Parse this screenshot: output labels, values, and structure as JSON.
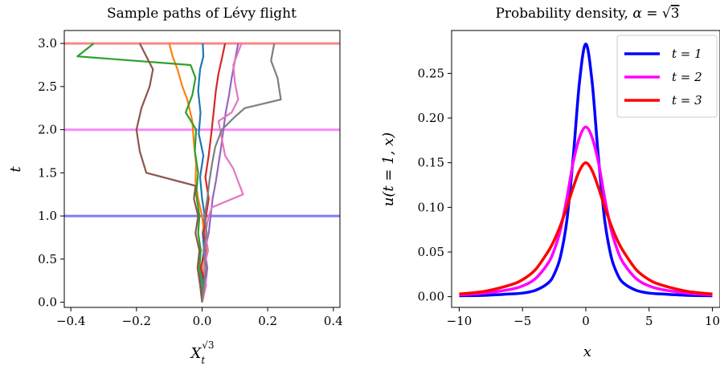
{
  "chart_data": [
    {
      "type": "line",
      "title": "Sample paths of Lévy flight",
      "xlabel": "X_t^{√3}",
      "xlabel_base": "X",
      "xlabel_sub": "t",
      "xlabel_sup": "√3",
      "ylabel": "t",
      "xlim": [
        -0.42,
        0.42
      ],
      "ylim": [
        -0.06,
        3.15
      ],
      "xticks": [
        -0.4,
        -0.2,
        0.0,
        0.2,
        0.4
      ],
      "xtick_labels": [
        "−0.4",
        "−0.2",
        "0.0",
        "0.2",
        "0.4"
      ],
      "yticks": [
        0.0,
        0.5,
        1.0,
        1.5,
        2.0,
        2.5,
        3.0
      ],
      "ytick_labels": [
        "0.0",
        "0.5",
        "1.0",
        "1.5",
        "2.0",
        "2.5",
        "3.0"
      ],
      "hlines": [
        {
          "y": 1.0,
          "color": "#7d7df5"
        },
        {
          "y": 2.0,
          "color": "#f98bf9"
        },
        {
          "y": 3.0,
          "color": "#f88888"
        }
      ],
      "series": [
        {
          "color": "#1f77b4",
          "points": [
            [
              0.0,
              0.0
            ],
            [
              0.004,
              0.2
            ],
            [
              -0.003,
              0.4
            ],
            [
              0.006,
              0.6
            ],
            [
              0.002,
              0.8
            ],
            [
              0.008,
              1.0
            ],
            [
              0.0,
              1.2
            ],
            [
              -0.006,
              1.45
            ],
            [
              0.004,
              1.7
            ],
            [
              -0.01,
              1.95
            ],
            [
              -0.005,
              2.2
            ],
            [
              -0.012,
              2.45
            ],
            [
              -0.006,
              2.7
            ],
            [
              0.004,
              2.85
            ],
            [
              0.002,
              3.0
            ]
          ]
        },
        {
          "color": "#ff7f0e",
          "points": [
            [
              0.0,
              0.0
            ],
            [
              0.008,
              0.2
            ],
            [
              0.004,
              0.4
            ],
            [
              0.014,
              0.6
            ],
            [
              0.006,
              0.8
            ],
            [
              0.0,
              1.0
            ],
            [
              -0.012,
              1.2
            ],
            [
              -0.02,
              1.4
            ],
            [
              -0.018,
              1.6
            ],
            [
              -0.025,
              1.85
            ],
            [
              -0.03,
              2.1
            ],
            [
              -0.045,
              2.35
            ],
            [
              -0.06,
              2.5
            ],
            [
              -0.075,
              2.7
            ],
            [
              -0.09,
              2.85
            ],
            [
              -0.1,
              3.0
            ]
          ]
        },
        {
          "color": "#2ca02c",
          "points": [
            [
              0.0,
              0.0
            ],
            [
              -0.002,
              0.2
            ],
            [
              -0.008,
              0.4
            ],
            [
              -0.004,
              0.6
            ],
            [
              -0.012,
              0.8
            ],
            [
              -0.008,
              1.0
            ],
            [
              -0.018,
              1.25
            ],
            [
              -0.012,
              1.5
            ],
            [
              -0.022,
              1.75
            ],
            [
              -0.018,
              2.0
            ],
            [
              -0.05,
              2.2
            ],
            [
              -0.03,
              2.4
            ],
            [
              -0.02,
              2.6
            ],
            [
              -0.035,
              2.75
            ],
            [
              -0.38,
              2.85
            ],
            [
              -0.33,
              3.0
            ]
          ]
        },
        {
          "color": "#d62728",
          "points": [
            [
              0.0,
              0.0
            ],
            [
              0.012,
              0.2
            ],
            [
              -0.004,
              0.4
            ],
            [
              0.01,
              0.6
            ],
            [
              0.005,
              0.8
            ],
            [
              0.012,
              1.0
            ],
            [
              0.02,
              1.2
            ],
            [
              0.01,
              1.45
            ],
            [
              0.02,
              1.7
            ],
            [
              0.028,
              1.95
            ],
            [
              0.035,
              2.2
            ],
            [
              0.042,
              2.45
            ],
            [
              0.05,
              2.65
            ],
            [
              0.06,
              2.82
            ],
            [
              0.07,
              3.0
            ]
          ]
        },
        {
          "color": "#9467bd",
          "points": [
            [
              0.0,
              0.0
            ],
            [
              0.01,
              0.2
            ],
            [
              0.016,
              0.4
            ],
            [
              0.008,
              0.6
            ],
            [
              0.02,
              0.8
            ],
            [
              0.026,
              1.0
            ],
            [
              0.032,
              1.2
            ],
            [
              0.042,
              1.4
            ],
            [
              0.05,
              1.6
            ],
            [
              0.058,
              1.8
            ],
            [
              0.065,
              2.0
            ],
            [
              0.072,
              2.2
            ],
            [
              0.082,
              2.4
            ],
            [
              0.09,
              2.6
            ],
            [
              0.1,
              2.8
            ],
            [
              0.11,
              3.0
            ]
          ]
        },
        {
          "color": "#8c564b",
          "points": [
            [
              0.0,
              0.0
            ],
            [
              -0.006,
              0.2
            ],
            [
              -0.014,
              0.4
            ],
            [
              -0.008,
              0.6
            ],
            [
              -0.02,
              0.8
            ],
            [
              -0.012,
              1.0
            ],
            [
              -0.025,
              1.2
            ],
            [
              -0.02,
              1.35
            ],
            [
              -0.17,
              1.5
            ],
            [
              -0.19,
              1.75
            ],
            [
              -0.2,
              2.0
            ],
            [
              -0.185,
              2.25
            ],
            [
              -0.16,
              2.5
            ],
            [
              -0.15,
              2.7
            ],
            [
              -0.17,
              2.85
            ],
            [
              -0.19,
              3.0
            ]
          ]
        },
        {
          "color": "#e377c2",
          "points": [
            [
              0.0,
              0.0
            ],
            [
              0.012,
              0.2
            ],
            [
              0.006,
              0.4
            ],
            [
              0.018,
              0.6
            ],
            [
              0.01,
              0.8
            ],
            [
              0.02,
              1.0
            ],
            [
              0.03,
              1.1
            ],
            [
              0.125,
              1.25
            ],
            [
              0.11,
              1.4
            ],
            [
              0.095,
              1.55
            ],
            [
              0.07,
              1.7
            ],
            [
              0.06,
              1.9
            ],
            [
              0.05,
              2.1
            ],
            [
              0.09,
              2.2
            ],
            [
              0.11,
              2.35
            ],
            [
              0.1,
              2.55
            ],
            [
              0.095,
              2.75
            ],
            [
              0.12,
              3.0
            ]
          ]
        },
        {
          "color": "#7f7f7f",
          "points": [
            [
              0.0,
              0.0
            ],
            [
              0.006,
              0.2
            ],
            [
              0.012,
              0.4
            ],
            [
              0.004,
              0.6
            ],
            [
              0.014,
              0.8
            ],
            [
              0.008,
              1.0
            ],
            [
              0.016,
              1.2
            ],
            [
              0.022,
              1.4
            ],
            [
              0.03,
              1.6
            ],
            [
              0.04,
              1.8
            ],
            [
              0.06,
              2.0
            ],
            [
              0.1,
              2.15
            ],
            [
              0.13,
              2.25
            ],
            [
              0.24,
              2.35
            ],
            [
              0.23,
              2.6
            ],
            [
              0.21,
              2.8
            ],
            [
              0.22,
              3.0
            ]
          ]
        }
      ]
    },
    {
      "type": "line",
      "title": "Probability density, α = √3",
      "title_prefix": "Probability density, ",
      "title_alpha": "α",
      "title_eq": " = ",
      "title_sqrt_arg": "3",
      "xlabel": "x",
      "ylabel": "u(t = 1, x)",
      "xlim": [
        -10.6,
        10.6
      ],
      "ylim": [
        -0.012,
        0.298
      ],
      "xticks": [
        -10,
        -5,
        0,
        5,
        10
      ],
      "xtick_labels": [
        "−10",
        "−5",
        "0",
        "5",
        "10"
      ],
      "yticks": [
        0.0,
        0.05,
        0.1,
        0.15,
        0.2,
        0.25
      ],
      "ytick_labels": [
        "0.00",
        "0.05",
        "0.10",
        "0.15",
        "0.20",
        "0.25"
      ],
      "legend": {
        "placement": "top-right"
      },
      "x": [
        -10,
        -8,
        -6,
        -5,
        -4,
        -3,
        -2.5,
        -2,
        -1.5,
        -1,
        -0.5,
        0,
        0.5,
        1,
        1.5,
        2,
        2.5,
        3,
        4,
        5,
        6,
        8,
        10
      ],
      "series": [
        {
          "name": "t = 1",
          "color": "#0000ff",
          "values": [
            0.001,
            0.0015,
            0.003,
            0.004,
            0.007,
            0.015,
            0.025,
            0.045,
            0.085,
            0.155,
            0.24,
            0.283,
            0.24,
            0.155,
            0.085,
            0.045,
            0.025,
            0.015,
            0.007,
            0.004,
            0.003,
            0.0015,
            0.001
          ]
        },
        {
          "name": "t = 2",
          "color": "#ff00ff",
          "values": [
            0.002,
            0.004,
            0.008,
            0.012,
            0.02,
            0.037,
            0.052,
            0.075,
            0.11,
            0.15,
            0.178,
            0.19,
            0.178,
            0.15,
            0.11,
            0.075,
            0.052,
            0.037,
            0.02,
            0.012,
            0.008,
            0.004,
            0.002
          ]
        },
        {
          "name": "t = 3",
          "color": "#ff0000",
          "values": [
            0.003,
            0.006,
            0.013,
            0.019,
            0.03,
            0.05,
            0.063,
            0.08,
            0.1,
            0.122,
            0.141,
            0.15,
            0.141,
            0.122,
            0.1,
            0.08,
            0.063,
            0.05,
            0.03,
            0.019,
            0.013,
            0.006,
            0.003
          ]
        }
      ]
    }
  ]
}
